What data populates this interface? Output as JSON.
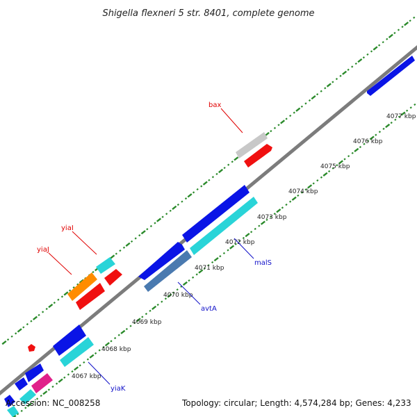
{
  "header": {
    "title": "Shigella flexneri 5 str. 8401, complete genome"
  },
  "footer": {
    "accession": "Accession: NC_008258",
    "topology": "Topology: circular; Length: 4,574,284 bp; Genes: 4,233"
  },
  "scale_labels": [
    "4067 kbp",
    "4068 kbp",
    "4069 kbp",
    "4070 kbp",
    "4071 kbp",
    "4072 kbp",
    "4073 kbp",
    "4074 kbp",
    "4075 kbp",
    "4076 kbp",
    "4077 kbp"
  ],
  "gene_labels": [
    {
      "name": "bax",
      "color": "#e00000"
    },
    {
      "name": "yiaI",
      "color": "#e00000"
    },
    {
      "name": "yiaJ",
      "color": "#e00000"
    },
    {
      "name": "malS",
      "color": "#1010c8"
    },
    {
      "name": "avtA",
      "color": "#1010c8"
    },
    {
      "name": "yiaK",
      "color": "#1010c8"
    }
  ],
  "colors": {
    "backbone": "#8a8a8a",
    "tick_green": "#2a8a2a",
    "blue_gene": "#0a14e6",
    "cyan_gene": "#29d4d8",
    "red_gene": "#f01010",
    "orange_gene": "#ff8c00",
    "gray_gene": "#c8c8c8",
    "steel_gene": "#4a7ab0",
    "magenta_gene": "#e0208a"
  }
}
